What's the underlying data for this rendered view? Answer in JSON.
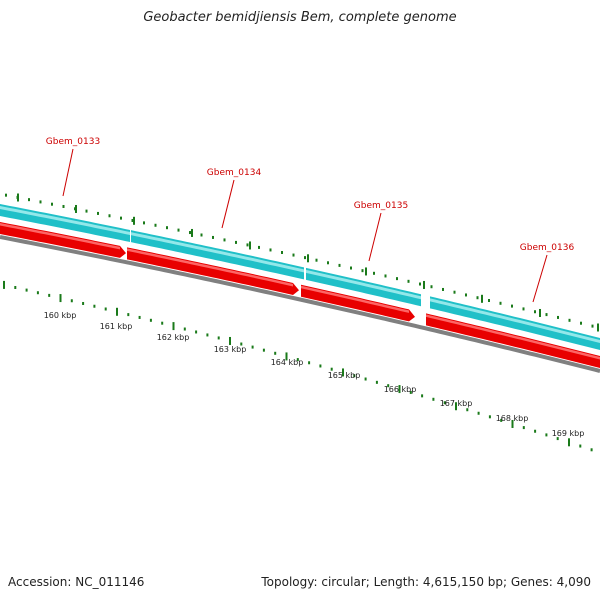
{
  "title": "Geobacter bemidjiensis Bem, complete genome",
  "accession_text": "Accession: NC_011146",
  "summary_text": "Topology: circular; Length: 4,615,150 bp; Genes: 4,090",
  "colors": {
    "gene_label": "#cc0000",
    "gene_cds": "#e80000",
    "gene_cds_highlight": "#ff7070",
    "gene_track": "#20c0c8",
    "gene_track_highlight": "#a8eef0",
    "backbone": "#808080",
    "ticks": "#1a7a1a"
  },
  "genes": [
    {
      "name": "Gbem_0133"
    },
    {
      "name": "Gbem_0134"
    },
    {
      "name": "Gbem_0135"
    },
    {
      "name": "Gbem_0136"
    }
  ],
  "scale": {
    "unit": "kbp",
    "labels": [
      "160 kbp",
      "161 kbp",
      "162 kbp",
      "163 kbp",
      "164 kbp",
      "165 kbp",
      "166 kbp",
      "167 kbp",
      "168 kbp",
      "169 kbp"
    ]
  }
}
